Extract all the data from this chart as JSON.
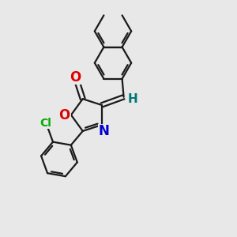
{
  "background_color": "#e8e8e8",
  "bond_color": "#1a1a1a",
  "atom_colors": {
    "O": "#dd0000",
    "N": "#0000cc",
    "Cl": "#00aa00",
    "H": "#007777",
    "C": "#1a1a1a"
  },
  "figsize": [
    3.0,
    3.0
  ],
  "dpi": 100
}
